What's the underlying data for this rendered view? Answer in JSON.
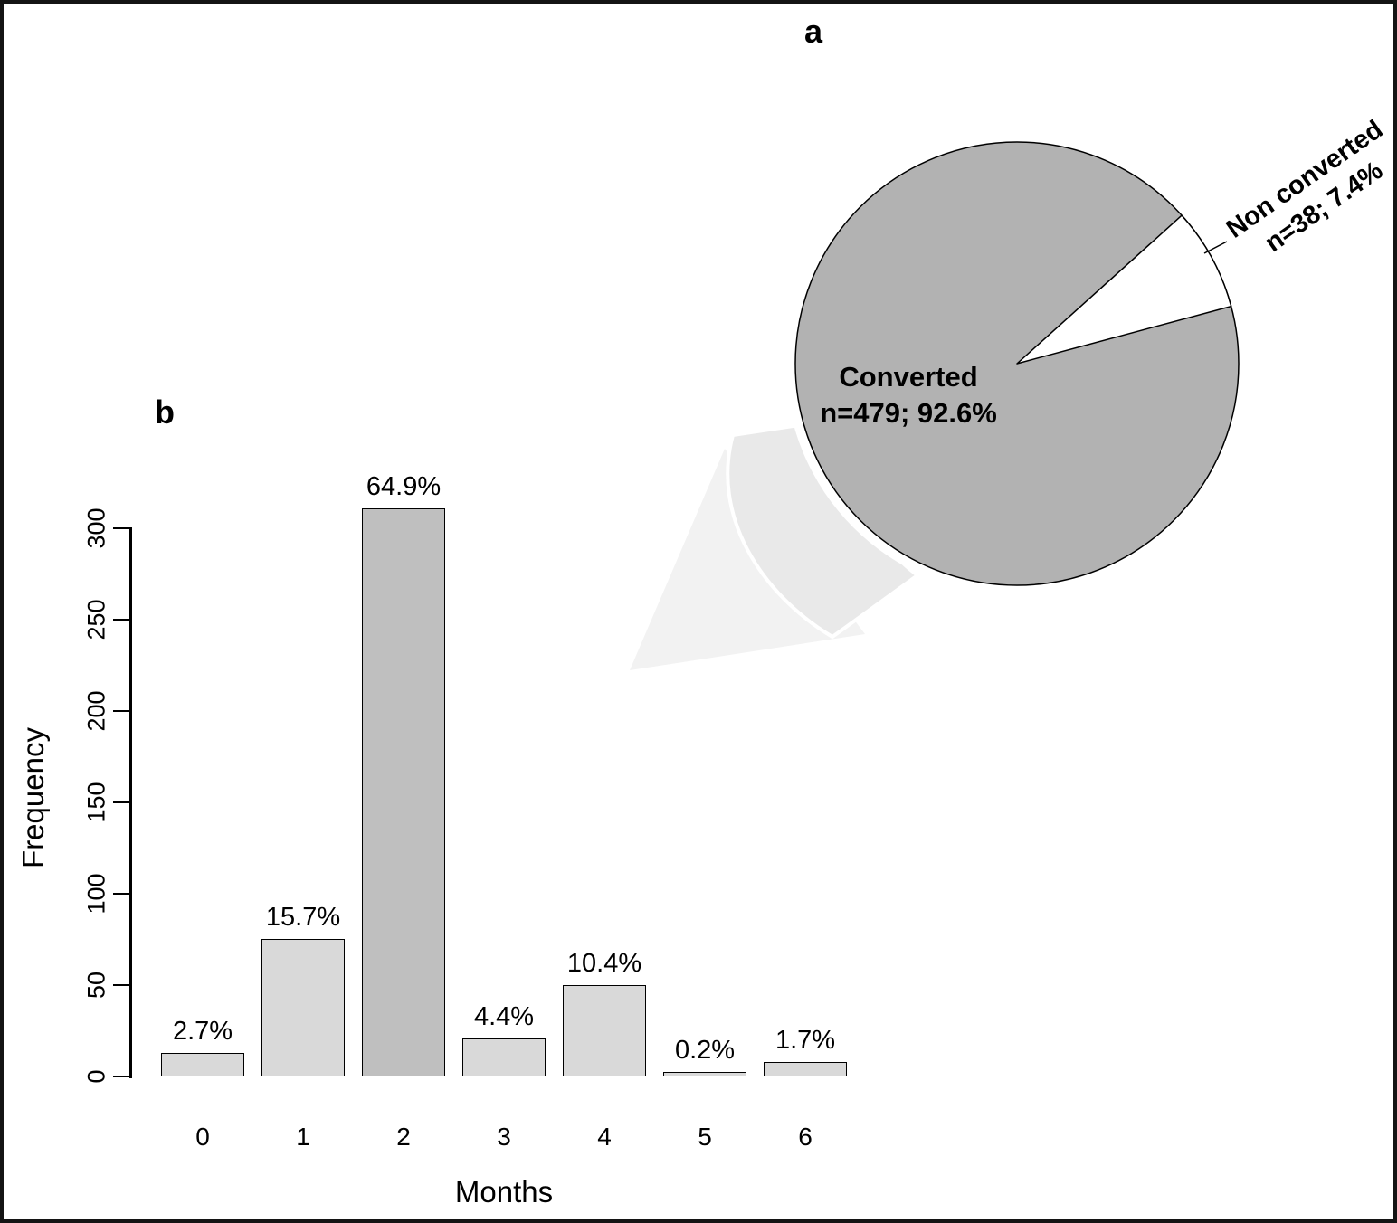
{
  "figure": {
    "background": "#ffffff",
    "frame_color": "#141414"
  },
  "chart_data": [
    {
      "type": "pie",
      "panel_label": "a",
      "slices": [
        {
          "label": "Converted",
          "n": 479,
          "pct": 92.6,
          "display_line1": "Converted",
          "display_line2": "n=479; 92.6%",
          "color": "#b2b2b2"
        },
        {
          "label": "Non converted",
          "n": 38,
          "pct": 7.4,
          "display_line1": "Non converted",
          "display_line2": "n=38; 7.4%",
          "color": "#ffffff"
        }
      ],
      "nonconverted_wedge_angles_deg": [
        15,
        42
      ],
      "outline_color": "#000000"
    },
    {
      "type": "bar",
      "panel_label": "b",
      "categories": [
        "0",
        "1",
        "2",
        "3",
        "4",
        "5",
        "6"
      ],
      "values": [
        13,
        75,
        311,
        21,
        50,
        1,
        8
      ],
      "percent_labels": [
        "2.7%",
        "15.7%",
        "64.9%",
        "4.4%",
        "10.4%",
        "0.2%",
        "1.7%"
      ],
      "xlabel": "Months",
      "ylabel": "Frequency",
      "yticks": [
        0,
        50,
        100,
        150,
        200,
        250,
        300
      ],
      "ylim": [
        0,
        311
      ],
      "grid": false,
      "legend": "none",
      "bar_colors": [
        "#d9d9d9",
        "#d9d9d9",
        "#bfbfbf",
        "#d9d9d9",
        "#d9d9d9",
        "#d9d9d9",
        "#d9d9d9"
      ],
      "bar_outline_color": "#000000"
    }
  ],
  "decor": {
    "arrow_head_color": "#f2f2f2",
    "arrow_body_color": "#e9e9e9"
  }
}
